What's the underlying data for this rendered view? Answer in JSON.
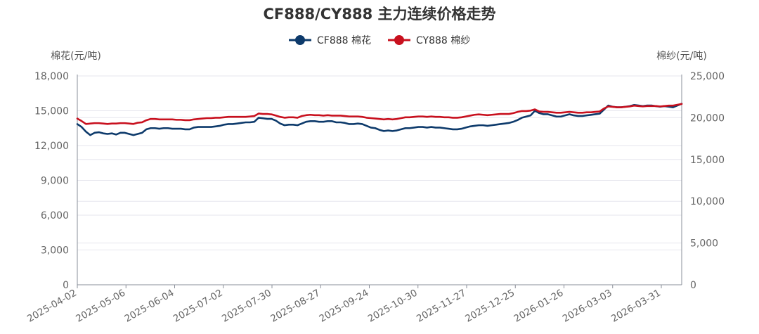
{
  "chart_data": {
    "type": "line",
    "title": "CF888/CY888 主力连续价格走势",
    "legend_position": "top-center",
    "grid": true,
    "y_left": {
      "label": "棉花(元/吨)",
      "ylim": [
        0,
        18000
      ],
      "ticks": [
        "0",
        "3,000",
        "6,000",
        "9,000",
        "12,000",
        "15,000",
        "18,000"
      ]
    },
    "y_right": {
      "label": "棉纱(元/吨)",
      "ylim": [
        0,
        25000
      ],
      "ticks": [
        "0",
        "5,000",
        "10,000",
        "15,000",
        "20,000",
        "25,000"
      ]
    },
    "x_ticks": [
      "2025-04-02",
      "2025-05-06",
      "2025-06-04",
      "2025-07-02",
      "2025-07-30",
      "2025-08-27",
      "2025-09-24",
      "2025-10-30",
      "2025-11-27",
      "2025-12-25",
      "2026-01-26",
      "2026-03-03",
      "2026-03-31"
    ],
    "series": [
      {
        "name": "CF888 棉花",
        "axis": "left",
        "color": "#0d3a6b",
        "values": [
          13850,
          13600,
          13200,
          12900,
          13100,
          13150,
          13050,
          13000,
          13050,
          12950,
          13100,
          13100,
          13000,
          12900,
          13000,
          13100,
          13400,
          13500,
          13500,
          13450,
          13500,
          13500,
          13450,
          13450,
          13450,
          13400,
          13400,
          13550,
          13600,
          13600,
          13600,
          13600,
          13650,
          13700,
          13800,
          13850,
          13850,
          13900,
          13950,
          14000,
          14000,
          14050,
          14400,
          14350,
          14300,
          14300,
          14150,
          13900,
          13750,
          13800,
          13800,
          13750,
          13900,
          14050,
          14100,
          14100,
          14050,
          14050,
          14100,
          14100,
          14000,
          14000,
          13950,
          13850,
          13850,
          13900,
          13850,
          13700,
          13550,
          13500,
          13350,
          13250,
          13300,
          13250,
          13300,
          13400,
          13500,
          13500,
          13550,
          13600,
          13600,
          13550,
          13600,
          13550,
          13550,
          13500,
          13450,
          13400,
          13400,
          13450,
          13550,
          13650,
          13700,
          13750,
          13750,
          13700,
          13750,
          13800,
          13850,
          13900,
          13950,
          14050,
          14200,
          14400,
          14500,
          14600,
          15000,
          14800,
          14700,
          14700,
          14600,
          14500,
          14500,
          14600,
          14700,
          14600,
          14550,
          14550,
          14600,
          14650,
          14700,
          14750,
          15100,
          15450,
          15350,
          15300,
          15300,
          15350,
          15400,
          15500,
          15450,
          15400,
          15450,
          15450,
          15400,
          15350,
          15400,
          15350,
          15300,
          15450,
          15600
        ]
      },
      {
        "name": "CY888 棉纱",
        "axis": "right",
        "color": "#c8101e",
        "values": [
          19900,
          19600,
          19250,
          19300,
          19350,
          19350,
          19300,
          19250,
          19300,
          19300,
          19350,
          19350,
          19300,
          19250,
          19400,
          19450,
          19700,
          19850,
          19850,
          19800,
          19800,
          19800,
          19800,
          19750,
          19750,
          19700,
          19700,
          19800,
          19850,
          19900,
          19950,
          19950,
          20000,
          20000,
          20050,
          20100,
          20100,
          20100,
          20100,
          20100,
          20150,
          20200,
          20500,
          20450,
          20450,
          20400,
          20250,
          20100,
          20000,
          20050,
          20050,
          20000,
          20200,
          20300,
          20350,
          20300,
          20300,
          20250,
          20300,
          20250,
          20250,
          20250,
          20200,
          20150,
          20150,
          20150,
          20100,
          20000,
          19950,
          19900,
          19850,
          19800,
          19850,
          19800,
          19850,
          19950,
          20050,
          20050,
          20100,
          20150,
          20150,
          20100,
          20150,
          20100,
          20100,
          20050,
          20050,
          20000,
          20000,
          20050,
          20150,
          20250,
          20350,
          20400,
          20350,
          20300,
          20350,
          20400,
          20450,
          20450,
          20450,
          20550,
          20700,
          20800,
          20800,
          20850,
          21000,
          20750,
          20700,
          20700,
          20650,
          20600,
          20600,
          20650,
          20700,
          20650,
          20600,
          20600,
          20650,
          20650,
          20700,
          20750,
          21100,
          21350,
          21300,
          21250,
          21250,
          21300,
          21350,
          21450,
          21400,
          21350,
          21400,
          21400,
          21400,
          21350,
          21400,
          21450,
          21450,
          21550,
          21650
        ]
      }
    ]
  }
}
